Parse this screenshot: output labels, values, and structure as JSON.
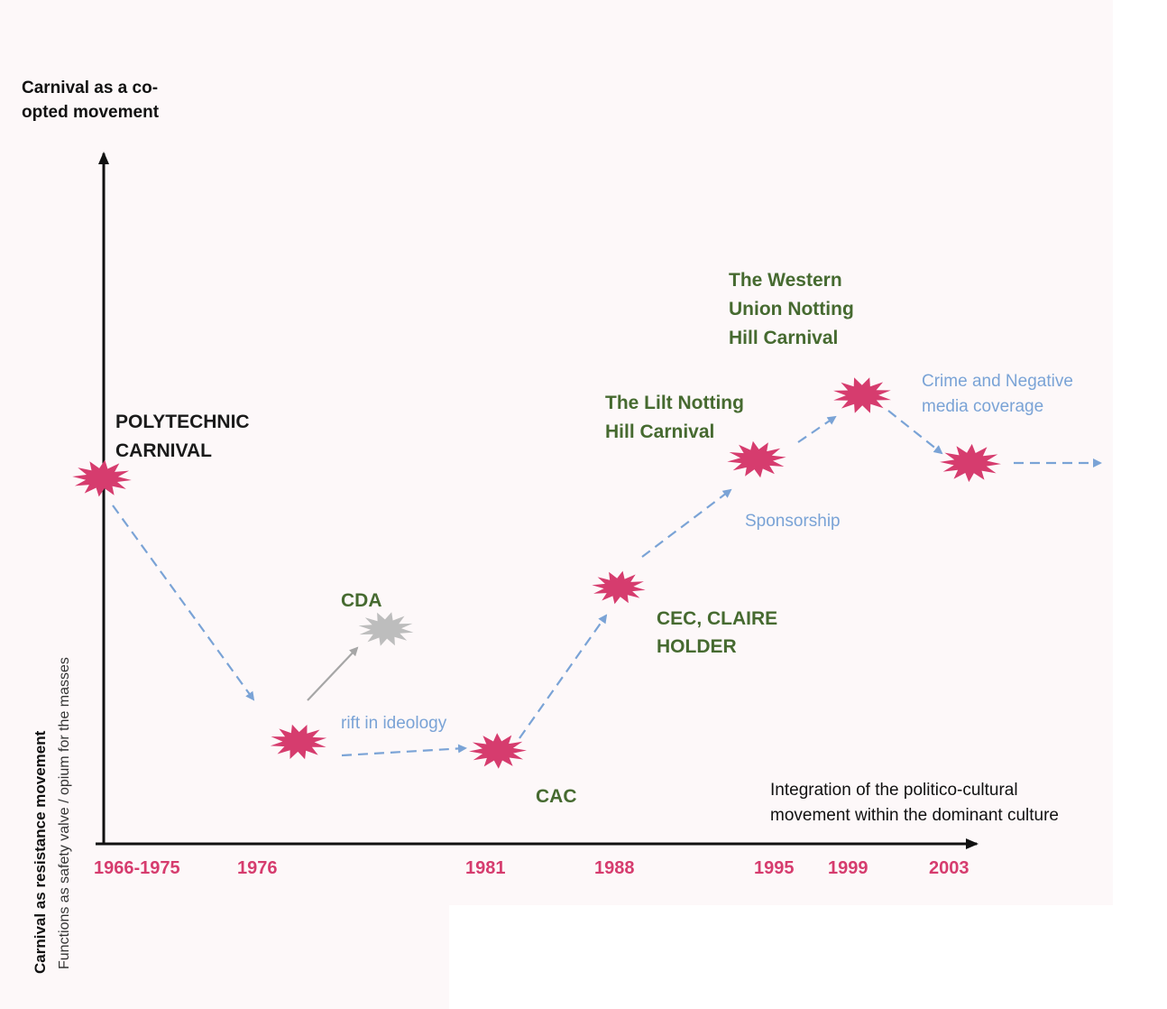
{
  "axes": {
    "y_top_label": [
      "Carnival as a co-",
      "opted movement"
    ],
    "y_side_bold": "Carnival as resistance movement",
    "y_side_sub": "Functions as safety valve / opium for the masses",
    "x_label": [
      "Integration of the politico-cultural",
      "movement within the dominant culture"
    ]
  },
  "years": [
    "1966-1975",
    "1976",
    "1981",
    "1988",
    "1995",
    "1999",
    "2003"
  ],
  "events": {
    "polytechnic": [
      "POLYTECHNIC",
      "CARNIVAL"
    ],
    "cda": "CDA",
    "cac": "CAC",
    "cec": [
      "CEC, CLAIRE",
      "HOLDER"
    ],
    "lilt": [
      "The Lilt Notting",
      "Hill Carnival"
    ],
    "western_union": [
      "The Western",
      "Union Notting",
      "Hill Carnival"
    ]
  },
  "notes": {
    "rift": "rift in ideology",
    "sponsorship": "Sponsorship",
    "crime": [
      "Crime and Negative",
      "media coverage"
    ]
  },
  "colors": {
    "marker": "#d63c6e",
    "marker_faded": "#bdbdbd",
    "arrow": "#7aa3d6",
    "arrow_gray": "#a6a6a6",
    "green_text": "#466a30",
    "year_text": "#d63c6e"
  }
}
